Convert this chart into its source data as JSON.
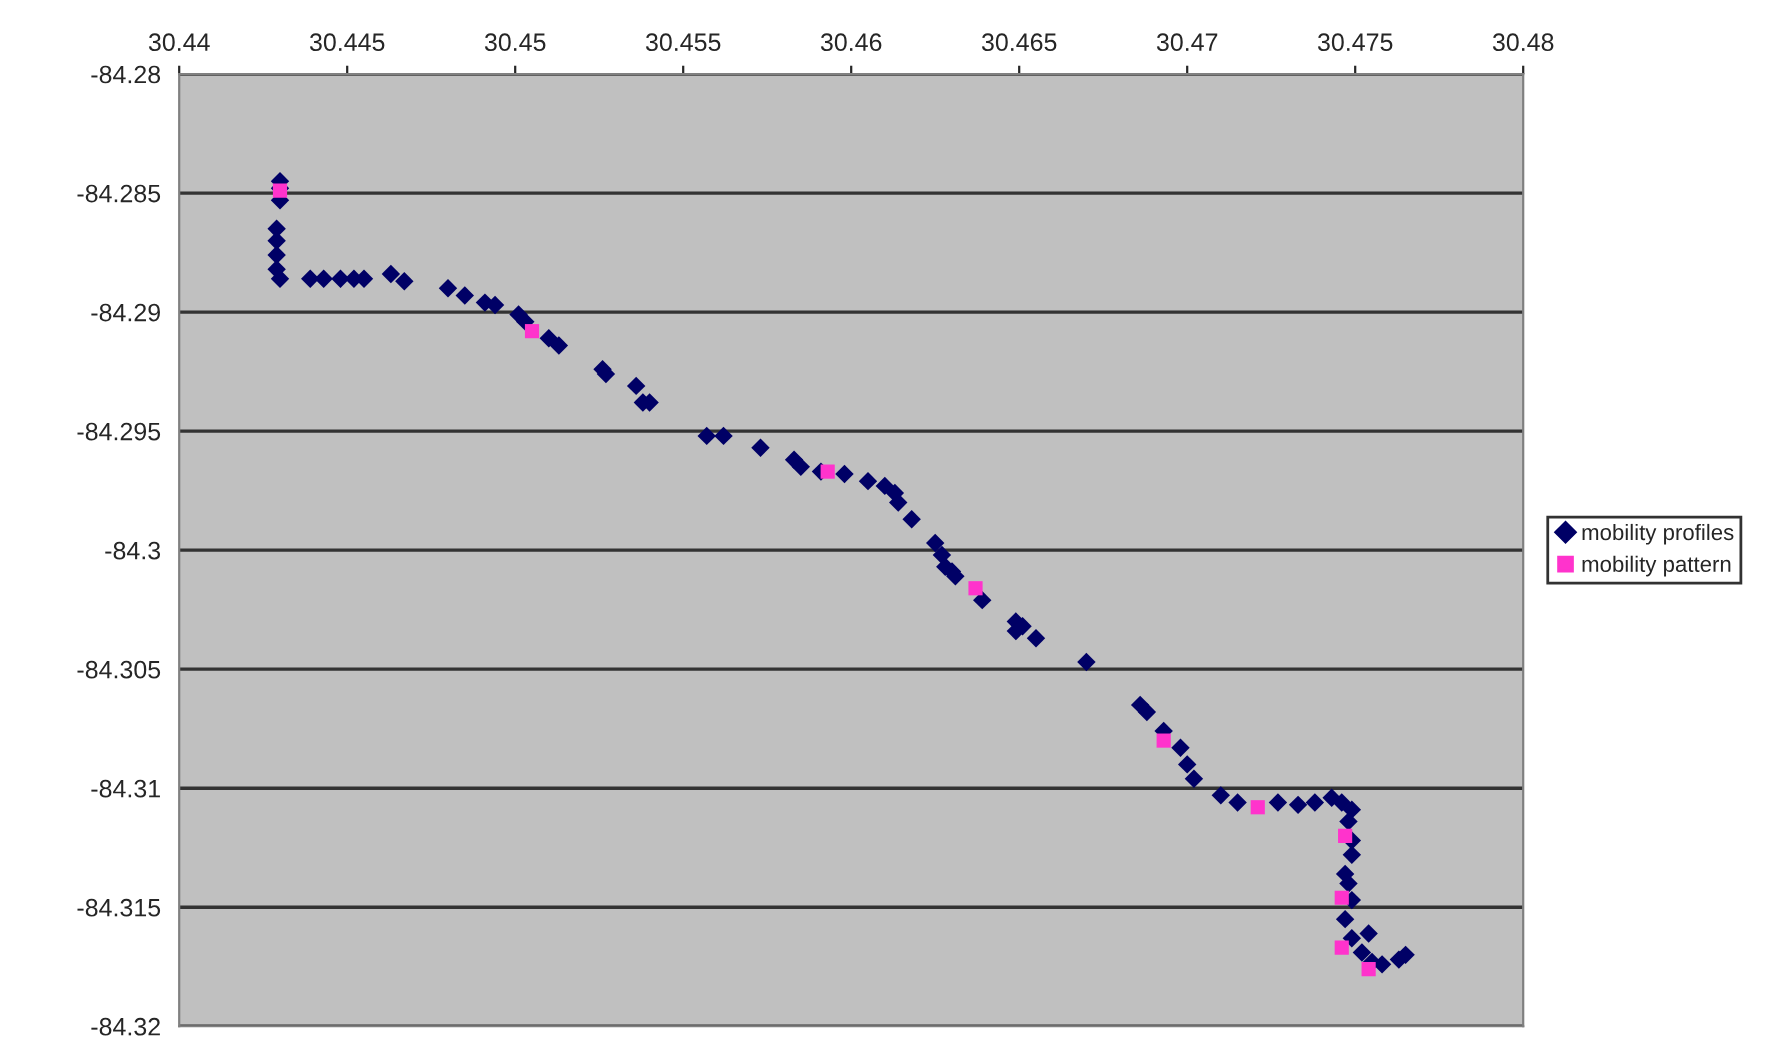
{
  "chart_data": {
    "type": "scatter",
    "xlim": [
      30.44,
      30.48
    ],
    "xticks": [
      30.44,
      30.445,
      30.45,
      30.455,
      30.46,
      30.465,
      30.47,
      30.475,
      30.48
    ],
    "ylim": [
      -84.32,
      -84.28
    ],
    "yticks": [
      -84.32,
      -84.315,
      -84.31,
      -84.305,
      -84.3,
      -84.295,
      -84.29,
      -84.285,
      -84.28
    ],
    "grid": "y",
    "legend": "right",
    "series": [
      {
        "name": "mobility profiles",
        "color": "#000066",
        "marker": "diamond",
        "x": [
          30.443,
          30.443,
          30.443,
          30.4429,
          30.4429,
          30.4429,
          30.4429,
          30.443,
          30.4439,
          30.4443,
          30.4448,
          30.4452,
          30.4455,
          30.4463,
          30.4467,
          30.448,
          30.4485,
          30.4491,
          30.4494,
          30.4501,
          30.4503,
          30.451,
          30.4513,
          30.4526,
          30.4527,
          30.4536,
          30.4538,
          30.454,
          30.4557,
          30.4562,
          30.4573,
          30.4583,
          30.4585,
          30.4591,
          30.4598,
          30.4605,
          30.461,
          30.4613,
          30.4614,
          30.4618,
          30.4625,
          30.4627,
          30.4628,
          30.463,
          30.4631,
          30.4639,
          30.4649,
          30.4649,
          30.4651,
          30.4655,
          30.467,
          30.4686,
          30.4688,
          30.4693,
          30.4698,
          30.47,
          30.4702,
          30.471,
          30.4715,
          30.4721,
          30.4727,
          30.4733,
          30.4738,
          30.4743,
          30.4746,
          30.4749,
          30.4748,
          30.4749,
          30.4749,
          30.4747,
          30.4748,
          30.4749,
          30.4747,
          30.4749,
          30.4754,
          30.4752,
          30.4755,
          30.4758,
          30.4763,
          30.4765
        ],
        "values": [
          -84.2845,
          -84.2848,
          -84.2853,
          -84.2865,
          -84.287,
          -84.2876,
          -84.2882,
          -84.2886,
          -84.2886,
          -84.2886,
          -84.2886,
          -84.2886,
          -84.2886,
          -84.2884,
          -84.2887,
          -84.289,
          -84.2893,
          -84.2896,
          -84.2897,
          -84.2901,
          -84.2904,
          -84.2911,
          -84.2914,
          -84.2924,
          -84.2926,
          -84.2931,
          -84.2938,
          -84.2938,
          -84.2952,
          -84.2952,
          -84.2957,
          -84.2962,
          -84.2965,
          -84.2967,
          -84.2968,
          -84.2971,
          -84.2973,
          -84.2976,
          -84.298,
          -84.2987,
          -84.2997,
          -84.3002,
          -84.3007,
          -84.3009,
          -84.3011,
          -84.3021,
          -84.303,
          -84.3034,
          -84.3032,
          -84.3037,
          -84.3047,
          -84.3065,
          -84.3068,
          -84.3076,
          -84.3083,
          -84.309,
          -84.3096,
          -84.3103,
          -84.3106,
          null,
          -84.3106,
          -84.3107,
          -84.3106,
          -84.3104,
          -84.3106,
          -84.3109,
          -84.3114,
          -84.3122,
          -84.3128,
          -84.3136,
          -84.314,
          -84.3147,
          -84.3155,
          -84.3163,
          -84.3161,
          -84.3169,
          -84.3173,
          -84.3174,
          -84.3172,
          -84.317
        ]
      },
      {
        "name": "mobility pattern",
        "color": "#ff33cc",
        "marker": "square",
        "x": [
          30.443,
          30.4505,
          30.4593,
          30.4637,
          30.4693,
          30.4721,
          30.4747,
          30.4746,
          30.4746,
          30.4754
        ],
        "values": [
          -84.2849,
          -84.2908,
          -84.2967,
          -84.3016,
          -84.308,
          -84.3108,
          -84.312,
          -84.3146,
          -84.3167,
          -84.3176
        ]
      }
    ]
  }
}
